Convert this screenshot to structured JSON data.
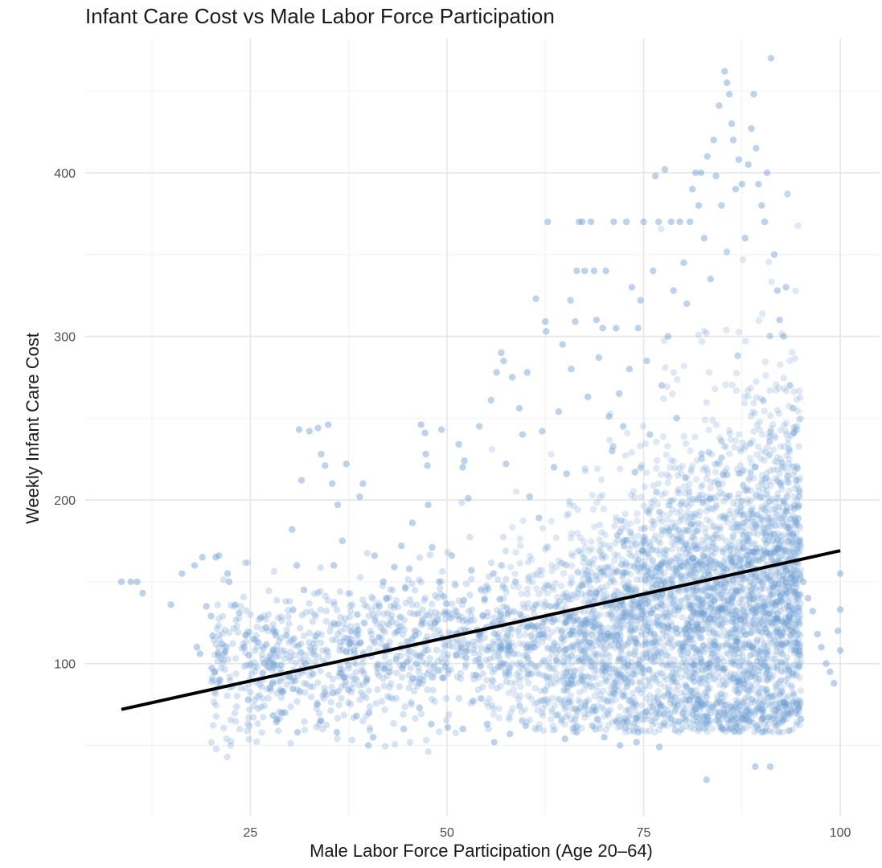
{
  "chart_data": {
    "type": "scatter",
    "title": "Infant Care Cost vs Male Labor Force Participation",
    "xlabel": "Male Labor Force Participation (Age 20–64)",
    "ylabel": "Weekly Infant Care Cost",
    "xlim": [
      4,
      105
    ],
    "ylim": [
      7,
      482
    ],
    "x_ticks": [
      25,
      50,
      75,
      100
    ],
    "y_ticks": [
      100,
      200,
      300,
      400
    ],
    "x_minor_ticks": [
      12.5,
      37.5,
      62.5,
      87.5
    ],
    "y_minor_ticks": [
      50,
      150,
      250,
      350,
      450
    ],
    "grid": true,
    "point_color": "#6c9bd2",
    "point_opacity": 0.45,
    "line_color": "#000000",
    "trend_line": {
      "x": [
        8.6,
        100
      ],
      "y": [
        72,
        169
      ]
    },
    "points": [
      [
        8.6,
        150
      ],
      [
        9.8,
        150
      ],
      [
        10.6,
        150
      ],
      [
        11.3,
        143
      ],
      [
        14.9,
        136
      ],
      [
        16.3,
        155
      ],
      [
        17.9,
        160
      ],
      [
        18.2,
        110
      ],
      [
        18.6,
        106
      ],
      [
        18.9,
        165
      ],
      [
        19.4,
        135
      ],
      [
        20.0,
        129
      ],
      [
        20.2,
        117
      ],
      [
        20.5,
        95
      ],
      [
        20.6,
        165
      ],
      [
        21.0,
        166
      ],
      [
        21.4,
        112
      ],
      [
        22.1,
        155
      ],
      [
        22.3,
        150
      ],
      [
        23.1,
        136
      ],
      [
        23.6,
        131
      ],
      [
        24.2,
        110
      ],
      [
        24.8,
        105
      ],
      [
        25.4,
        115
      ],
      [
        26.0,
        113
      ],
      [
        26.3,
        128
      ],
      [
        27.0,
        122
      ],
      [
        27.2,
        98
      ],
      [
        27.9,
        108
      ],
      [
        28.4,
        66
      ],
      [
        28.9,
        99
      ],
      [
        29.4,
        70
      ],
      [
        30.3,
        182
      ],
      [
        30.9,
        160
      ],
      [
        31.2,
        243
      ],
      [
        31.5,
        212
      ],
      [
        31.8,
        145
      ],
      [
        32.0,
        100
      ],
      [
        32.5,
        242
      ],
      [
        33.3,
        117
      ],
      [
        33.6,
        244
      ],
      [
        34.0,
        228
      ],
      [
        34.5,
        221
      ],
      [
        34.9,
        246
      ],
      [
        35.4,
        210
      ],
      [
        35.6,
        160
      ],
      [
        36.1,
        197
      ],
      [
        36.7,
        175
      ],
      [
        37.2,
        222
      ],
      [
        37.6,
        112
      ],
      [
        38.2,
        108
      ],
      [
        38.6,
        130
      ],
      [
        38.9,
        202
      ],
      [
        39.3,
        210
      ],
      [
        39.8,
        90
      ],
      [
        40.1,
        70
      ],
      [
        40.6,
        55
      ],
      [
        40.8,
        166
      ],
      [
        41.4,
        135
      ],
      [
        41.9,
        150
      ],
      [
        42.3,
        140
      ],
      [
        42.7,
        95
      ],
      [
        43.3,
        159
      ],
      [
        43.8,
        120
      ],
      [
        44.2,
        172
      ],
      [
        44.7,
        146
      ],
      [
        45.2,
        158
      ],
      [
        45.6,
        186
      ],
      [
        46.1,
        100
      ],
      [
        46.5,
        73
      ],
      [
        46.7,
        246
      ],
      [
        47.2,
        241
      ],
      [
        47.3,
        228
      ],
      [
        47.5,
        221
      ],
      [
        47.6,
        197
      ],
      [
        48.1,
        171
      ],
      [
        48.5,
        125
      ],
      [
        49.0,
        150
      ],
      [
        49.3,
        243
      ],
      [
        49.8,
        98
      ],
      [
        50.1,
        61
      ],
      [
        50.6,
        166
      ],
      [
        51.2,
        105
      ],
      [
        51.5,
        234
      ],
      [
        52.0,
        220
      ],
      [
        52.2,
        224
      ],
      [
        52.7,
        201
      ],
      [
        53.1,
        157
      ],
      [
        53.7,
        93
      ],
      [
        54.1,
        245
      ],
      [
        54.6,
        129
      ],
      [
        55.1,
        63
      ],
      [
        55.6,
        261
      ],
      [
        55.9,
        155
      ],
      [
        56.3,
        278
      ],
      [
        56.9,
        290
      ],
      [
        57.2,
        285
      ],
      [
        57.5,
        222
      ],
      [
        57.8,
        110
      ],
      [
        58.3,
        275
      ],
      [
        58.7,
        150
      ],
      [
        59.2,
        256
      ],
      [
        59.6,
        240
      ],
      [
        60.2,
        278
      ],
      [
        60.5,
        202
      ],
      [
        60.9,
        123
      ],
      [
        61.3,
        323
      ],
      [
        61.7,
        189
      ],
      [
        62.1,
        242
      ],
      [
        62.5,
        309
      ],
      [
        62.6,
        303
      ],
      [
        62.8,
        370
      ],
      [
        63.1,
        135
      ],
      [
        63.6,
        220
      ],
      [
        63.9,
        102
      ],
      [
        64.2,
        254
      ],
      [
        64.7,
        295
      ],
      [
        65.2,
        216
      ],
      [
        65.7,
        322
      ],
      [
        65.8,
        280
      ],
      [
        66.3,
        309
      ],
      [
        66.5,
        340
      ],
      [
        66.8,
        370
      ],
      [
        67.2,
        370
      ],
      [
        67.5,
        340
      ],
      [
        67.9,
        263
      ],
      [
        68.3,
        370
      ],
      [
        68.7,
        340
      ],
      [
        69.0,
        310
      ],
      [
        69.3,
        287
      ],
      [
        69.8,
        305
      ],
      [
        70.2,
        340
      ],
      [
        70.6,
        251
      ],
      [
        71.0,
        230
      ],
      [
        71.2,
        370
      ],
      [
        71.5,
        305
      ],
      [
        71.9,
        265
      ],
      [
        72.4,
        245
      ],
      [
        72.8,
        370
      ],
      [
        73.2,
        280
      ],
      [
        73.5,
        330
      ],
      [
        73.9,
        217
      ],
      [
        74.3,
        305
      ],
      [
        74.6,
        322
      ],
      [
        75.0,
        370
      ],
      [
        75.4,
        285
      ],
      [
        75.8,
        240
      ],
      [
        76.2,
        340
      ],
      [
        76.5,
        398
      ],
      [
        76.9,
        370
      ],
      [
        77.3,
        270
      ],
      [
        77.7,
        402
      ],
      [
        78.1,
        300
      ],
      [
        78.5,
        370
      ],
      [
        78.8,
        328
      ],
      [
        79.2,
        250
      ],
      [
        79.6,
        370
      ],
      [
        80.1,
        345
      ],
      [
        80.5,
        320
      ],
      [
        80.9,
        370
      ],
      [
        81.2,
        390
      ],
      [
        81.6,
        400
      ],
      [
        82.0,
        380
      ],
      [
        82.3,
        400
      ],
      [
        82.7,
        360
      ],
      [
        83.1,
        410
      ],
      [
        83.5,
        335
      ],
      [
        83.9,
        420
      ],
      [
        84.2,
        398
      ],
      [
        84.6,
        441
      ],
      [
        84.9,
        380
      ],
      [
        85.3,
        462
      ],
      [
        85.6,
        455
      ],
      [
        85.9,
        448
      ],
      [
        86.2,
        430
      ],
      [
        86.4,
        420
      ],
      [
        86.7,
        390
      ],
      [
        87.1,
        408
      ],
      [
        87.5,
        393
      ],
      [
        87.9,
        360
      ],
      [
        88.3,
        405
      ],
      [
        88.7,
        427
      ],
      [
        89.0,
        448
      ],
      [
        89.3,
        415
      ],
      [
        89.6,
        393
      ],
      [
        90.0,
        380
      ],
      [
        90.4,
        370
      ],
      [
        90.7,
        400
      ],
      [
        91.2,
        470
      ],
      [
        91.6,
        350
      ],
      [
        92.0,
        328
      ],
      [
        92.3,
        310
      ],
      [
        92.8,
        300
      ],
      [
        93.1,
        330
      ],
      [
        93.6,
        270
      ],
      [
        94.0,
        256
      ],
      [
        94.4,
        212
      ],
      [
        94.8,
        175
      ],
      [
        95.3,
        150
      ],
      [
        95.9,
        140
      ],
      [
        96.5,
        132
      ],
      [
        97.1,
        118
      ],
      [
        97.6,
        110
      ],
      [
        98.2,
        100
      ],
      [
        98.7,
        95
      ],
      [
        99.2,
        88
      ],
      [
        99.7,
        120
      ],
      [
        100.0,
        155
      ],
      [
        100.0,
        133
      ],
      [
        100.0,
        108
      ],
      [
        83.0,
        29
      ],
      [
        89.2,
        37
      ],
      [
        91.1,
        37
      ],
      [
        72.0,
        50
      ],
      [
        74.1,
        52
      ],
      [
        77.0,
        49
      ],
      [
        85.0,
        60
      ],
      [
        90.0,
        66
      ],
      [
        93.5,
        59
      ],
      [
        95.0,
        66
      ],
      [
        65.0,
        54
      ],
      [
        66.5,
        58
      ],
      [
        68.5,
        62
      ],
      [
        70.0,
        55
      ],
      [
        58.0,
        57
      ],
      [
        60.0,
        62
      ],
      [
        56.0,
        52
      ],
      [
        52.0,
        60
      ],
      [
        48.0,
        63
      ],
      [
        44.5,
        60
      ],
      [
        40.0,
        50
      ],
      [
        38.5,
        68
      ],
      [
        36.0,
        58
      ],
      [
        34.0,
        65
      ],
      [
        31.0,
        58
      ],
      [
        33.5,
        75
      ],
      [
        29.0,
        70
      ],
      [
        27.5,
        85
      ],
      [
        35.5,
        82
      ],
      [
        37.0,
        92
      ]
    ],
    "density_band": {
      "x_center": [
        55,
        95
      ],
      "y_mean": [
        105,
        145
      ],
      "y_spread": [
        25,
        55
      ]
    }
  }
}
